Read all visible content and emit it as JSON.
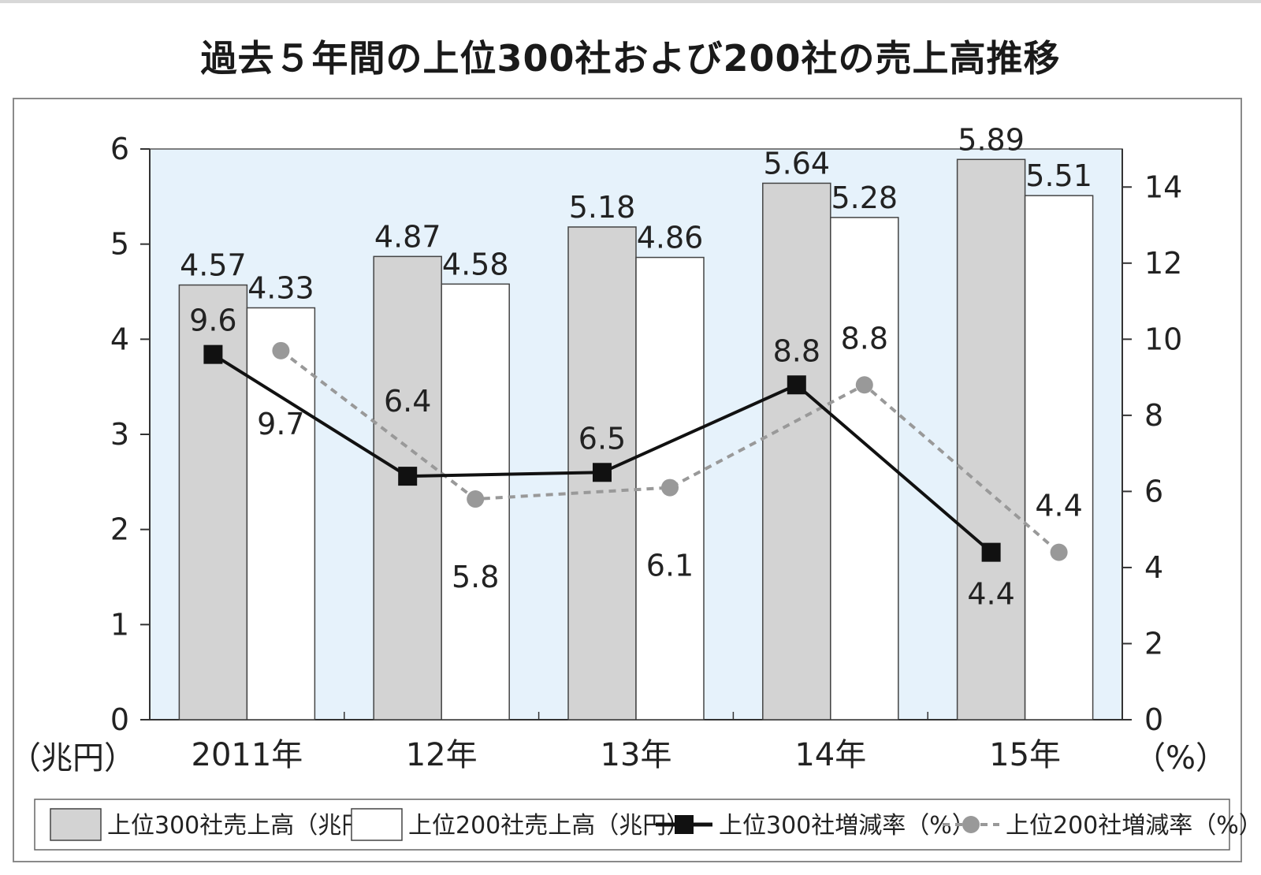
{
  "chart_data": {
    "type": "bar",
    "title": "過去５年間の上位300社および200社の売上高推移",
    "categories": [
      "2011年",
      "12年",
      "13年",
      "14年",
      "15年"
    ],
    "y_left_unit": "（兆円）",
    "y_right_unit": "（%）",
    "y_left_range": [
      0,
      6
    ],
    "y_left_ticks": [
      "0",
      "1",
      "2",
      "3",
      "4",
      "5",
      "6"
    ],
    "y_right_range": [
      0,
      15
    ],
    "y_right_ticks": [
      "0",
      "2",
      "4",
      "6",
      "8",
      "10",
      "12",
      "14"
    ],
    "bar_series": [
      {
        "name": "上位300社売上高（兆円）",
        "values": [
          4.57,
          4.87,
          5.18,
          5.64,
          5.89
        ],
        "labels": [
          "4.57",
          "4.87",
          "5.18",
          "5.64",
          "5.89"
        ],
        "color": "#d3d3d3"
      },
      {
        "name": "上位200社売上高（兆円）",
        "values": [
          4.33,
          4.58,
          4.86,
          5.28,
          5.51
        ],
        "labels": [
          "4.33",
          "4.58",
          "4.86",
          "5.28",
          "5.51"
        ],
        "color": "#ffffff"
      }
    ],
    "line_series": [
      {
        "name": "上位300社増減率（%）",
        "values": [
          9.6,
          6.4,
          6.5,
          8.8,
          4.4
        ],
        "labels": [
          "9.6",
          "6.4",
          "6.5",
          "8.8",
          "4.4"
        ],
        "color": "#111111",
        "style": "solid",
        "marker": "square"
      },
      {
        "name": "上位200社増減率（%）",
        "values": [
          9.7,
          5.8,
          6.1,
          8.8,
          4.4
        ],
        "labels": [
          "9.7",
          "5.8",
          "6.1",
          "8.8",
          "4.4"
        ],
        "color": "#999999",
        "style": "dashed",
        "marker": "circle"
      }
    ],
    "plot_background": "#e6f2fb",
    "legend_position": "bottom",
    "grid": false
  }
}
